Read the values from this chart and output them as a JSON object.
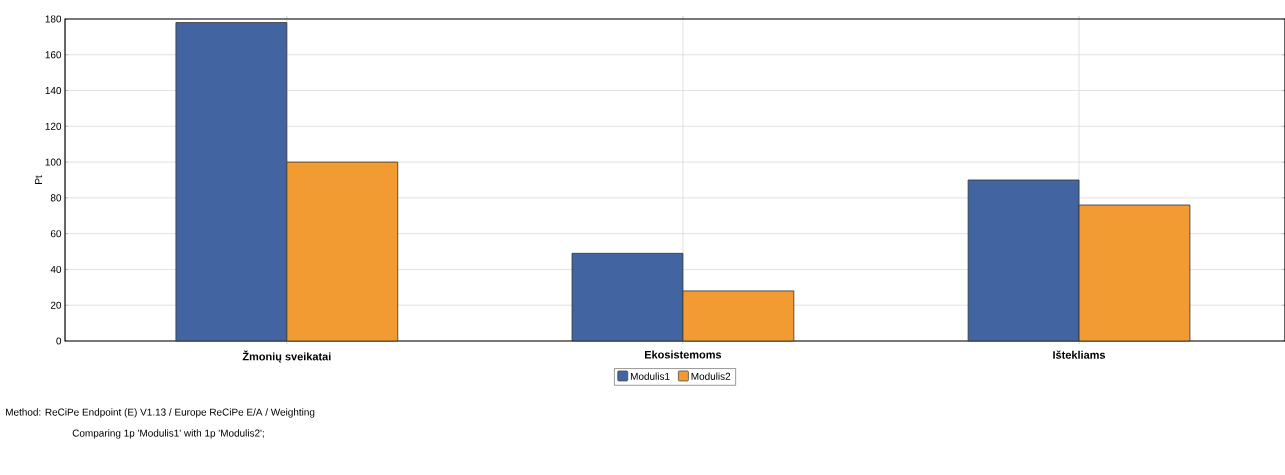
{
  "chart_data": {
    "type": "bar",
    "ylabel": "Pt",
    "categories": [
      "Žmonių sveikatai",
      "Ekosistemoms",
      "Ištekliams"
    ],
    "series": [
      {
        "name": "Modulis1",
        "color": "#4264a0",
        "values": [
          178,
          49,
          90
        ]
      },
      {
        "name": "Modulis2",
        "color": "#f29b33",
        "values": [
          100,
          28,
          76
        ]
      }
    ],
    "ylim": [
      0,
      180
    ],
    "yticks": [
      0,
      20,
      40,
      60,
      80,
      100,
      120,
      140,
      160,
      180
    ],
    "grid": true,
    "legend": "bottom",
    "annotations": [
      "Method: ReCiPe Endpoint (E) V1.13 / Europe ReCiPe E/A / Weighting",
      "Comparing 1p 'Modulis1' with 1p 'Modulis2';"
    ]
  }
}
